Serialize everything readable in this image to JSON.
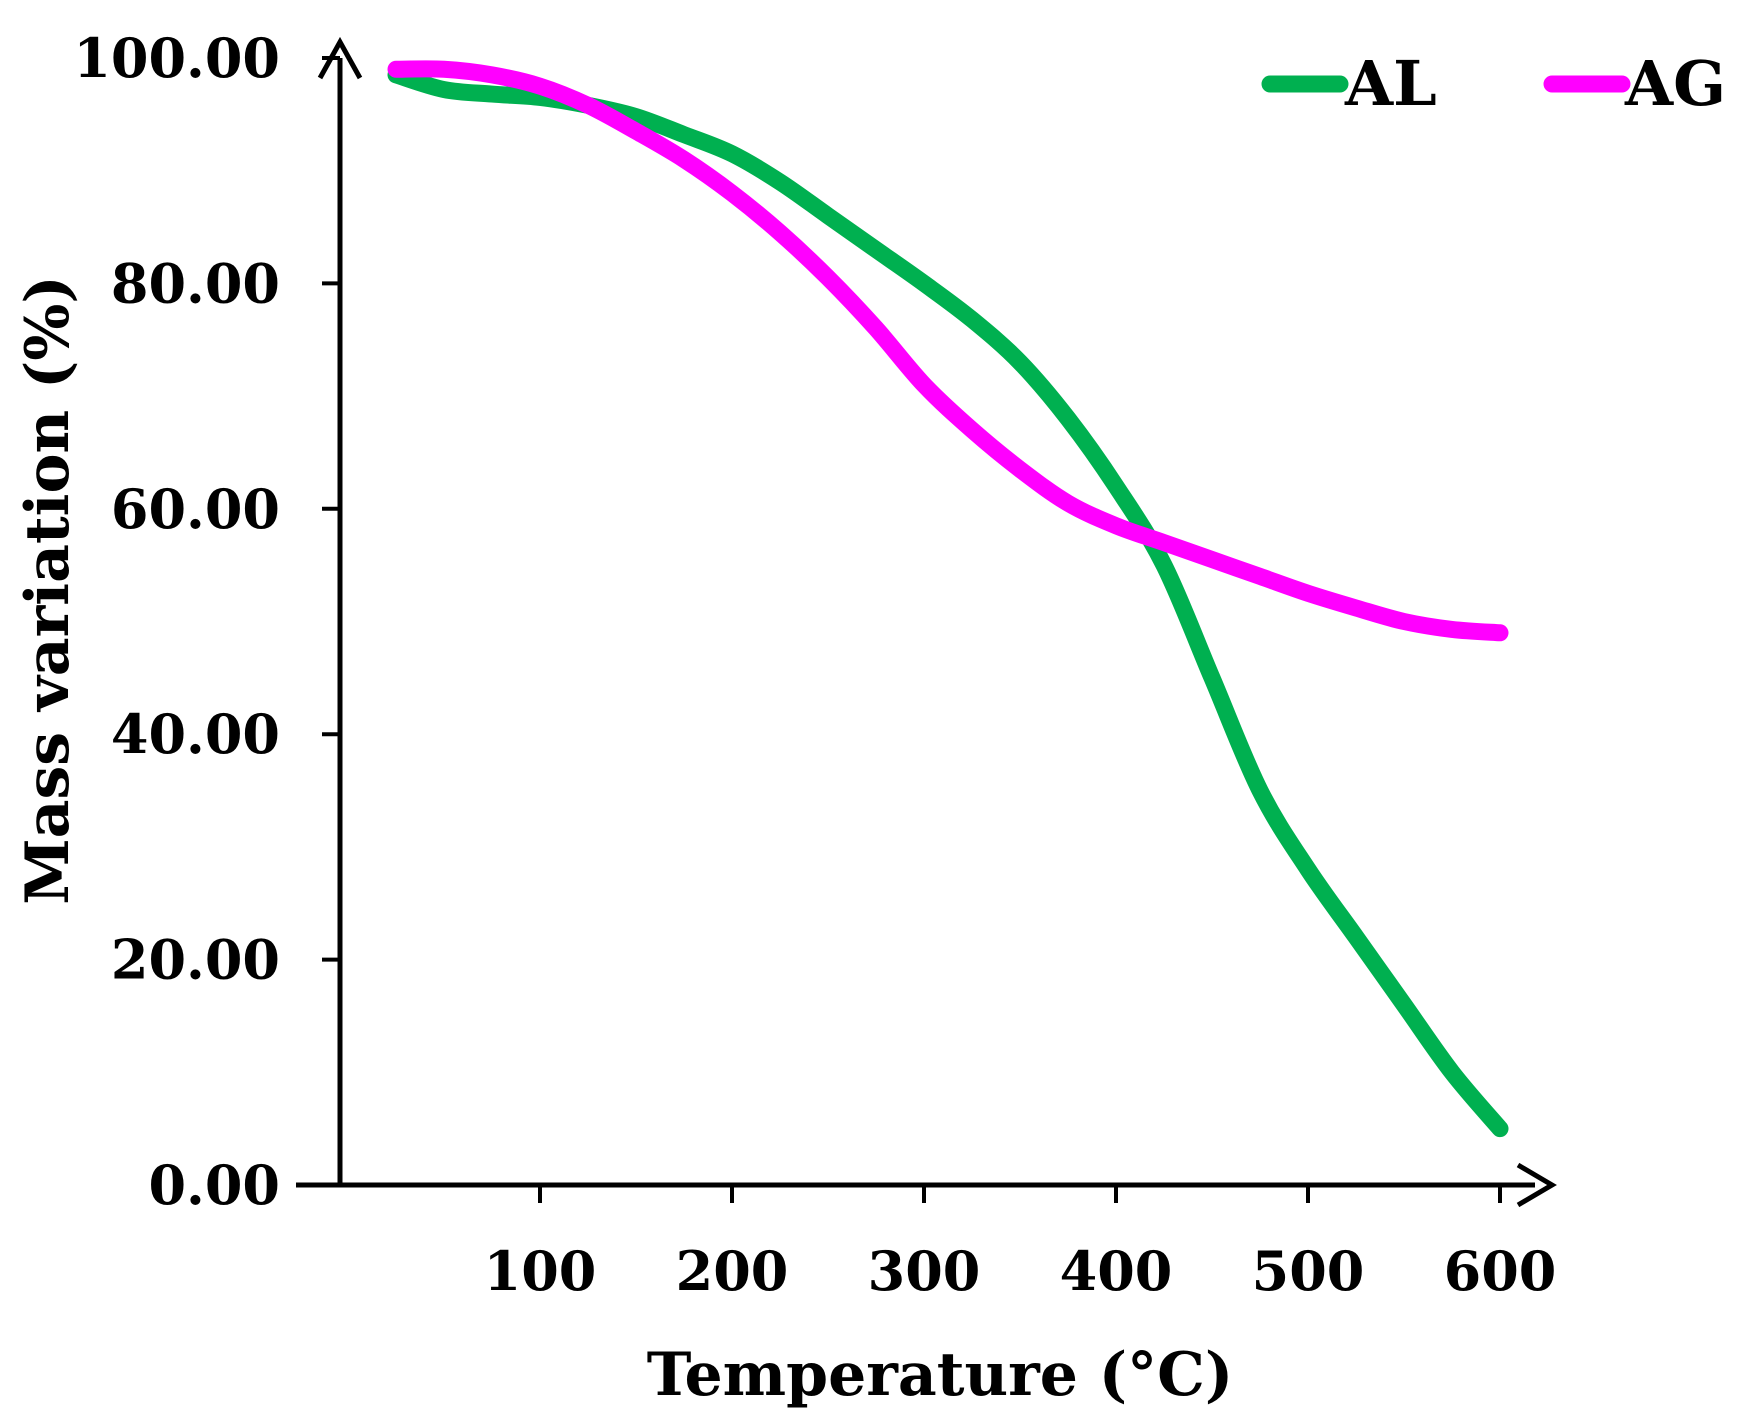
{
  "chart_data": {
    "type": "line",
    "title": "",
    "xlabel": "Temperature (°C)",
    "ylabel": "Mass variation (%)",
    "xlim": [
      0,
      600
    ],
    "ylim": [
      0,
      100
    ],
    "grid": false,
    "legend_position": "top-right",
    "x_ticks": [
      100,
      200,
      300,
      400,
      500,
      600
    ],
    "x_tick_labels": [
      "100",
      "200",
      "300",
      "400",
      "500",
      "600"
    ],
    "y_ticks": [
      0,
      20,
      40,
      60,
      80,
      100
    ],
    "y_tick_labels": [
      "0.00",
      "20.00",
      "40.00",
      "60.00",
      "80.00",
      "100.00"
    ],
    "series": [
      {
        "name": "AL",
        "color": "#00b050",
        "x": [
          25,
          50,
          75,
          100,
          125,
          150,
          175,
          200,
          225,
          250,
          275,
          300,
          325,
          350,
          375,
          400,
          425,
          450,
          475,
          500,
          525,
          550,
          575,
          600
        ],
        "y": [
          98.5,
          97.2,
          96.8,
          96.5,
          95.8,
          94.8,
          93.2,
          91.5,
          89.0,
          86.0,
          83.0,
          80.0,
          76.8,
          73.0,
          68.0,
          62.0,
          55.0,
          45.0,
          35.0,
          28.0,
          22.0,
          16.0,
          10.0,
          5.0
        ]
      },
      {
        "name": "AG",
        "color": "#ff00ff",
        "x": [
          25,
          50,
          75,
          100,
          125,
          150,
          175,
          200,
          225,
          250,
          275,
          300,
          325,
          350,
          375,
          400,
          425,
          450,
          475,
          500,
          525,
          550,
          575,
          600
        ],
        "y": [
          99.0,
          99.0,
          98.5,
          97.5,
          95.8,
          93.5,
          91.0,
          88.0,
          84.5,
          80.5,
          76.0,
          71.0,
          67.0,
          63.5,
          60.5,
          58.5,
          57.0,
          55.5,
          54.0,
          52.5,
          51.2,
          50.0,
          49.3,
          49.0
        ]
      }
    ]
  }
}
